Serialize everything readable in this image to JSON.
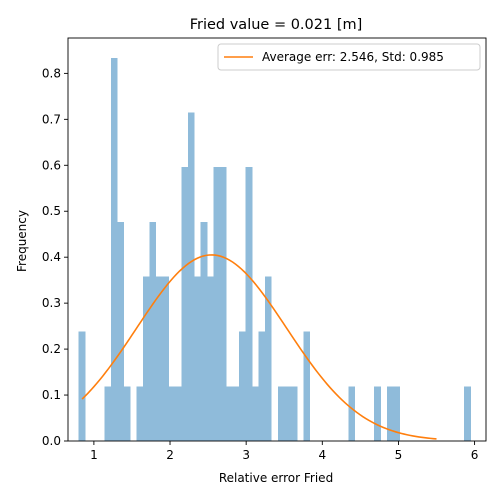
{
  "chart_data": {
    "type": "bar",
    "title": "Fried value = 0.021 [m]",
    "xlabel": "Relative error Fried",
    "ylabel": "Frequency",
    "xlim": [
      0.66,
      6.15
    ],
    "ylim": [
      0,
      0.877
    ],
    "xticks": [
      1,
      2,
      3,
      4,
      5,
      6
    ],
    "yticks": [
      0.0,
      0.1,
      0.2,
      0.3,
      0.4,
      0.5,
      0.6,
      0.7,
      0.8
    ],
    "grid": false,
    "legend_position": "top-right",
    "bar_color": "#8fbbda",
    "bin_width": 0.0843,
    "histogram": {
      "name": "",
      "bin_lefts": [
        0.8,
        1.138,
        1.222,
        1.306,
        1.391,
        1.56,
        1.644,
        1.728,
        1.813,
        1.897,
        1.981,
        2.066,
        2.15,
        2.234,
        2.319,
        2.403,
        2.487,
        2.572,
        2.656,
        2.741,
        2.825,
        2.909,
        2.994,
        3.078,
        3.162,
        3.247,
        3.331,
        3.415,
        3.5,
        3.584,
        3.668,
        3.753,
        3.921,
        4.006,
        4.343,
        4.681,
        4.849,
        4.934,
        5.862
      ],
      "values": [
        0.238,
        0.119,
        0.834,
        0.477,
        0.119,
        0.119,
        0.358,
        0.477,
        0.358,
        0.358,
        0.119,
        0.119,
        0.596,
        0.715,
        0.358,
        0.477,
        0.358,
        0.596,
        0.596,
        0.119,
        0.119,
        0.238,
        0.596,
        0.119,
        0.238,
        0.358,
        0.0,
        0.119,
        0.119,
        0.119,
        0.0,
        0.238,
        0.0,
        0.0,
        0.119,
        0.119,
        0.119,
        0.119,
        0.119
      ]
    },
    "series": [
      {
        "name": "Average err: 2.546, Std: 0.985",
        "type": "line",
        "color": "#ff7f0e",
        "distribution": "normal",
        "mean": 2.546,
        "std": 0.985,
        "x_range": [
          0.845,
          5.5
        ]
      }
    ]
  }
}
